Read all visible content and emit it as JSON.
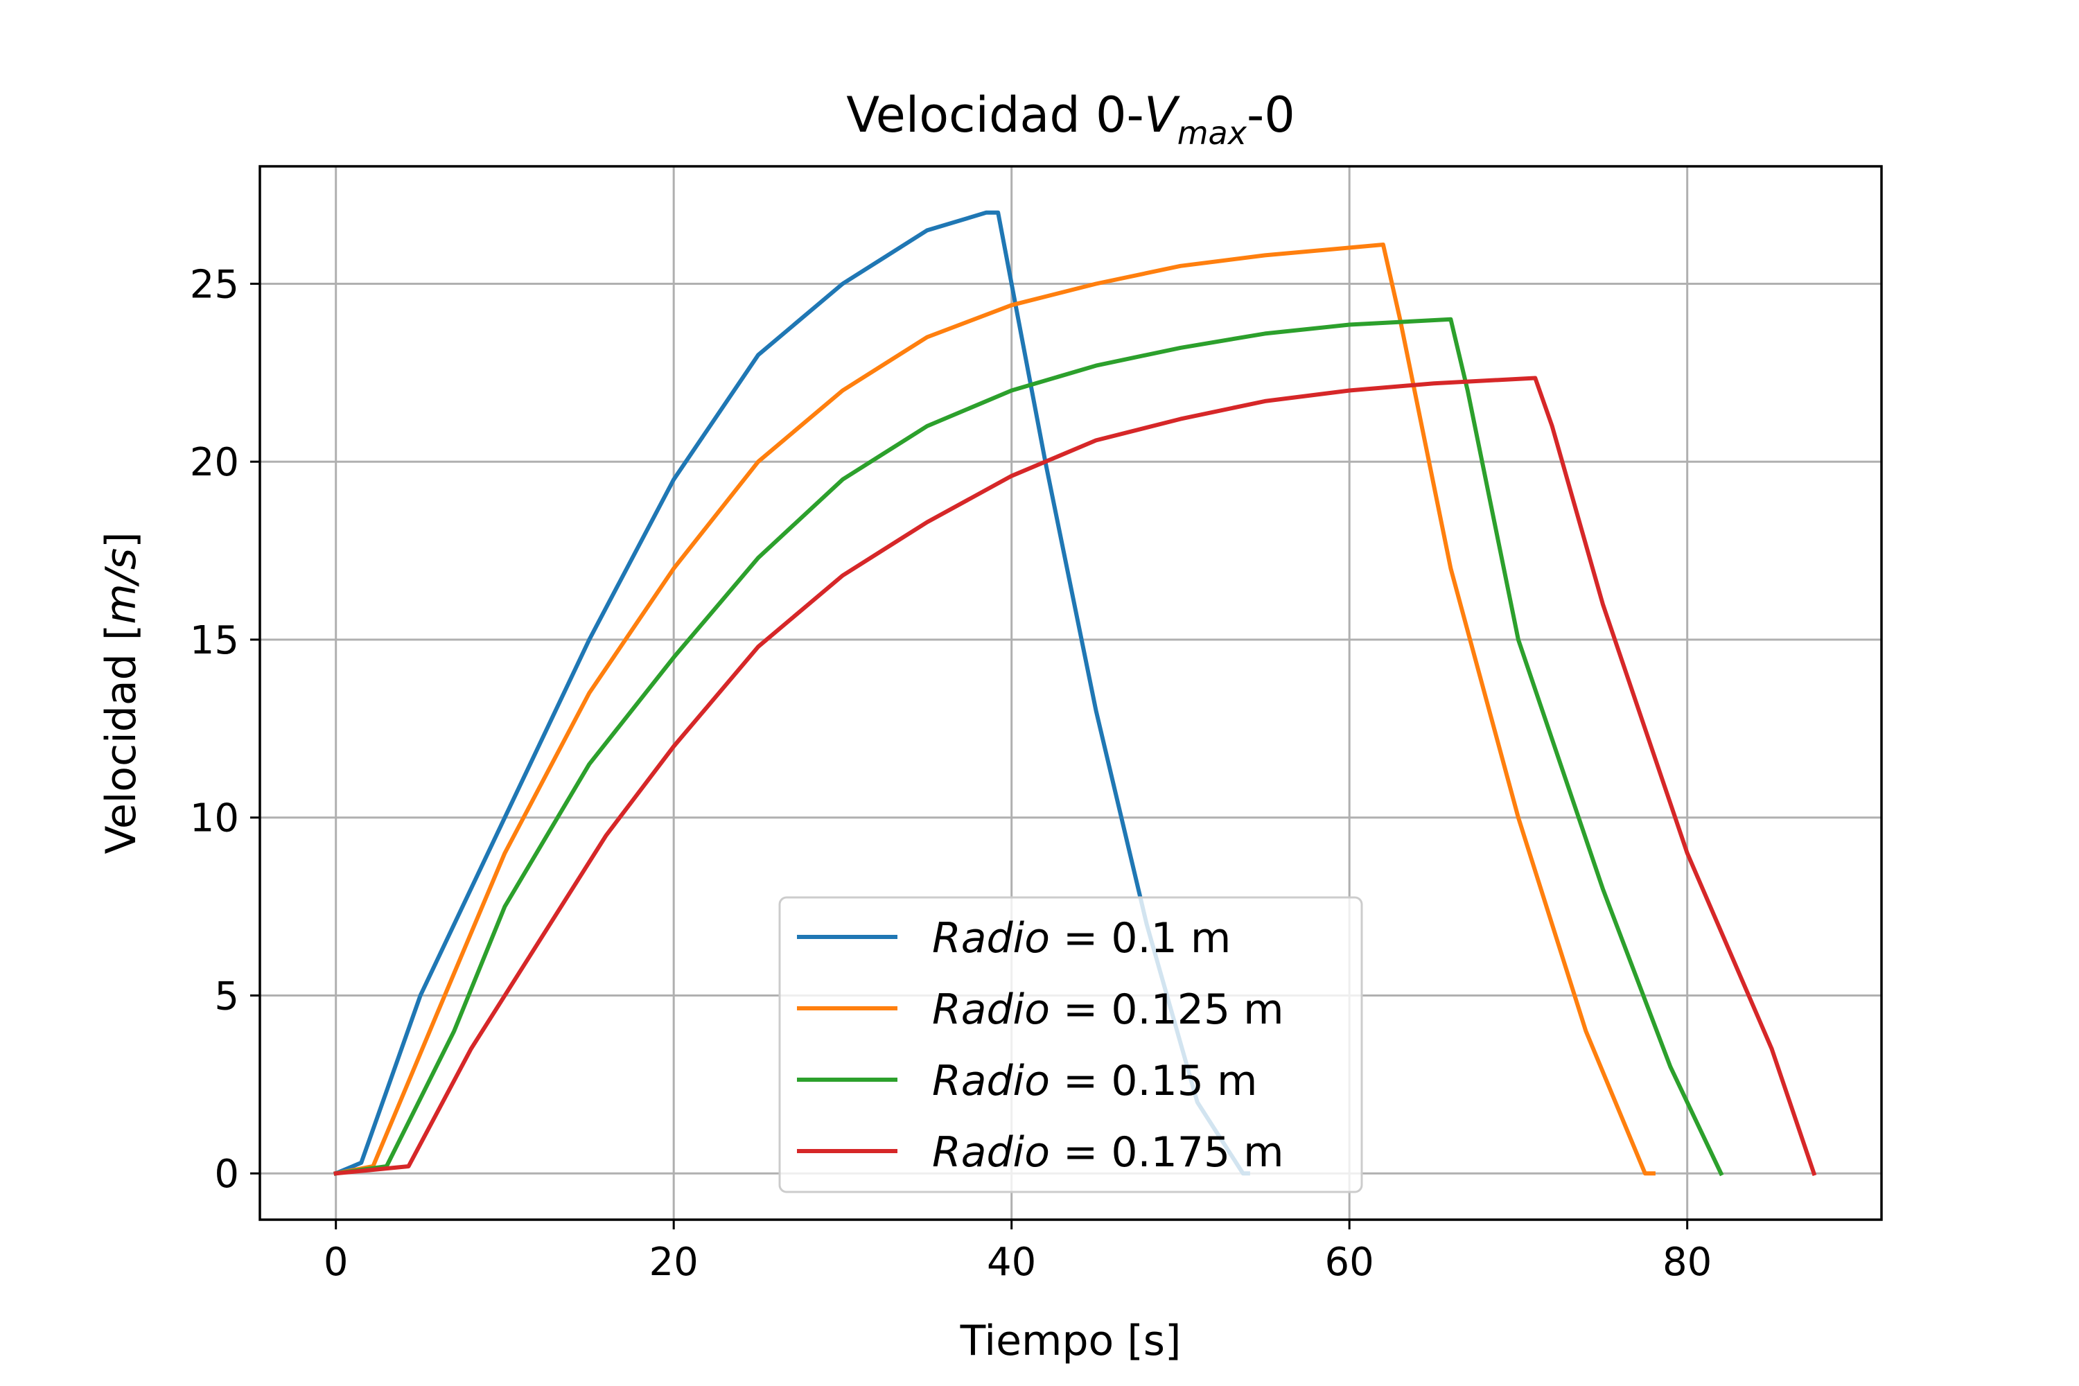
{
  "chart_data": {
    "type": "line",
    "title": {
      "main": "Velocidad 0-",
      "var": "V",
      "sub": "max",
      "tail": "-0"
    },
    "xlabel": "Tiempo [s]",
    "ylabel": {
      "pre": "Velocidad [",
      "unit": "m/s",
      "post": "]"
    },
    "xlim": [
      -4.5,
      91.5
    ],
    "ylim": [
      -1.3,
      28.3
    ],
    "xticks": [
      0,
      20,
      40,
      60,
      80
    ],
    "yticks": [
      0,
      5,
      10,
      15,
      20,
      25
    ],
    "xtick_labels": [
      "0",
      "20",
      "40",
      "60",
      "80"
    ],
    "ytick_labels": [
      "0",
      "5",
      "10",
      "15",
      "20",
      "25"
    ],
    "grid": true,
    "legend_position": "lower center",
    "legend_prefix": "Radio",
    "series": [
      {
        "name": "0.1 m",
        "color": "#1f77b4",
        "x": [
          0,
          1.5,
          5,
          10,
          15,
          20,
          25,
          30,
          35,
          38.5,
          39.2,
          42,
          45,
          48,
          51,
          53.7,
          54
        ],
        "y": [
          0,
          0.3,
          5,
          10,
          15,
          19.5,
          23,
          25,
          26.5,
          27,
          27,
          20,
          13,
          7,
          2,
          0,
          0
        ]
      },
      {
        "name": "0.125 m",
        "color": "#ff7f0e",
        "x": [
          0,
          2.2,
          6,
          10,
          15,
          20,
          25,
          30,
          35,
          40,
          45,
          50,
          55,
          62,
          63,
          66,
          70,
          74,
          77.5,
          78
        ],
        "y": [
          0,
          0.2,
          4.5,
          9,
          13.5,
          17,
          20,
          22,
          23.5,
          24.4,
          25,
          25.5,
          25.8,
          26.1,
          24,
          17,
          10,
          4,
          0,
          0
        ]
      },
      {
        "name": "0.15 m",
        "color": "#2ca02c",
        "x": [
          0,
          3,
          7,
          10,
          15,
          20,
          25,
          30,
          35,
          40,
          45,
          50,
          55,
          60,
          66,
          67,
          70,
          75,
          79,
          82
        ],
        "y": [
          0,
          0.2,
          4,
          7.5,
          11.5,
          14.5,
          17.3,
          19.5,
          21,
          22,
          22.7,
          23.2,
          23.6,
          23.85,
          24,
          22,
          15,
          8,
          3,
          0
        ]
      },
      {
        "name": "0.175 m",
        "color": "#d62728",
        "x": [
          0,
          4.3,
          8,
          12,
          16,
          20,
          25,
          30,
          35,
          40,
          45,
          50,
          55,
          60,
          65,
          71,
          72,
          75,
          80,
          85,
          87.5
        ],
        "y": [
          0,
          0.2,
          3.5,
          6.5,
          9.5,
          12,
          14.8,
          16.8,
          18.3,
          19.6,
          20.6,
          21.2,
          21.7,
          22,
          22.2,
          22.35,
          21,
          16,
          9,
          3.5,
          0
        ]
      }
    ]
  }
}
